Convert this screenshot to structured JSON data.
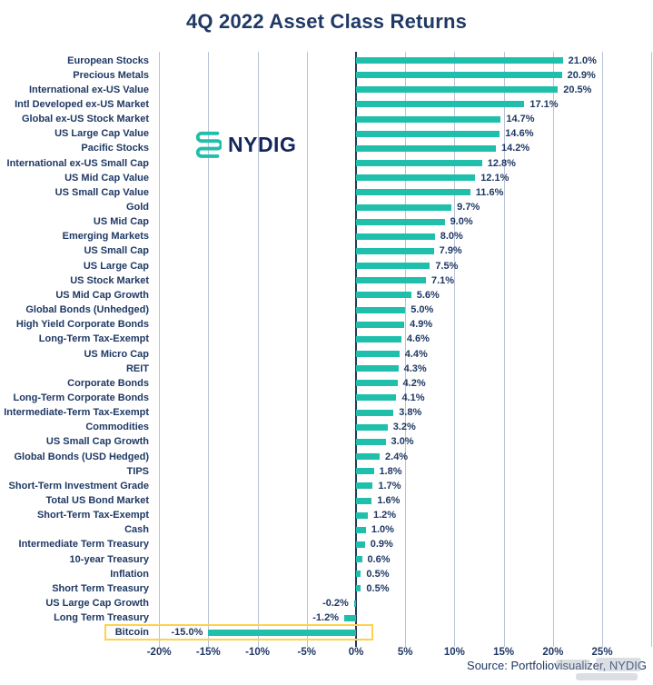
{
  "title": "4Q 2022 Asset Class Returns",
  "logo": {
    "text": "NYDIG"
  },
  "source": "Source: Portfoliovisualizer, NYDIG",
  "colors": {
    "bar": "#1fbfac",
    "text_navy": "#1f3864",
    "gridline": "#b9c2d8",
    "zero_axis": "#24395c",
    "highlight_yellow": "#ffd24d"
  },
  "chart_data": {
    "type": "bar",
    "orientation": "horizontal",
    "title": "4Q 2022 Asset Class Returns",
    "xlabel": "",
    "ylabel": "",
    "xlim": [
      -24,
      30
    ],
    "grid": "vertical",
    "legend": "none",
    "categories": [
      "European Stocks",
      "Precious Metals",
      "International ex-US Value",
      "Intl Developed ex-US Market",
      "Global ex-US Stock Market",
      "US Large Cap Value",
      "Pacific Stocks",
      "International ex-US Small Cap",
      "US Mid Cap Value",
      "US Small Cap Value",
      "Gold",
      "US Mid Cap",
      "Emerging Markets",
      "US Small Cap",
      "US Large Cap",
      "US Stock Market",
      "US Mid Cap Growth",
      "Global Bonds (Unhedged)",
      "High Yield Corporate Bonds",
      "Long-Term Tax-Exempt",
      "US Micro Cap",
      "REIT",
      "Corporate Bonds",
      "Long-Term Corporate Bonds",
      "Intermediate-Term Tax-Exempt",
      "Commodities",
      "US Small Cap Growth",
      "Global Bonds (USD Hedged)",
      "TIPS",
      "Short-Term Investment Grade",
      "Total US Bond Market",
      "Short-Term Tax-Exempt",
      "Cash",
      "Intermediate Term Treasury",
      "10-year Treasury",
      "Inflation",
      "Short Term Treasury",
      "US Large Cap Growth",
      "Long Term Treasury",
      "Bitcoin"
    ],
    "values": [
      21.0,
      20.9,
      20.5,
      17.1,
      14.7,
      14.6,
      14.2,
      12.8,
      12.1,
      11.6,
      9.7,
      9.0,
      8.0,
      7.9,
      7.5,
      7.1,
      5.6,
      5.0,
      4.9,
      4.6,
      4.4,
      4.3,
      4.2,
      4.1,
      3.8,
      3.2,
      3.0,
      2.4,
      1.8,
      1.7,
      1.6,
      1.2,
      1.0,
      0.9,
      0.6,
      0.5,
      0.5,
      -0.2,
      -1.2,
      -15.0
    ],
    "value_labels": [
      "21.0%",
      "20.9%",
      "20.5%",
      "17.1%",
      "14.7%",
      "14.6%",
      "14.2%",
      "12.8%",
      "12.1%",
      "11.6%",
      "9.7%",
      "9.0%",
      "8.0%",
      "7.9%",
      "7.5%",
      "7.1%",
      "5.6%",
      "5.0%",
      "4.9%",
      "4.6%",
      "4.4%",
      "4.3%",
      "4.2%",
      "4.1%",
      "3.8%",
      "3.2%",
      "3.0%",
      "2.4%",
      "1.8%",
      "1.7%",
      "1.6%",
      "1.2%",
      "1.0%",
      "0.9%",
      "0.6%",
      "0.5%",
      "0.5%",
      "-0.2%",
      "-1.2%",
      "-15.0%"
    ],
    "x_ticks": [
      "-20%",
      "-15%",
      "-10%",
      "-5%",
      "0%",
      "5%",
      "10%",
      "15%",
      "20%",
      "25%"
    ],
    "x_tick_values": [
      -20,
      -15,
      -10,
      -5,
      0,
      5,
      10,
      15,
      20,
      25
    ],
    "x_gridlines": [
      -20,
      -15,
      -10,
      -5,
      0,
      5,
      10,
      15,
      20,
      25,
      30
    ],
    "highlighted_category": "Bitcoin"
  }
}
